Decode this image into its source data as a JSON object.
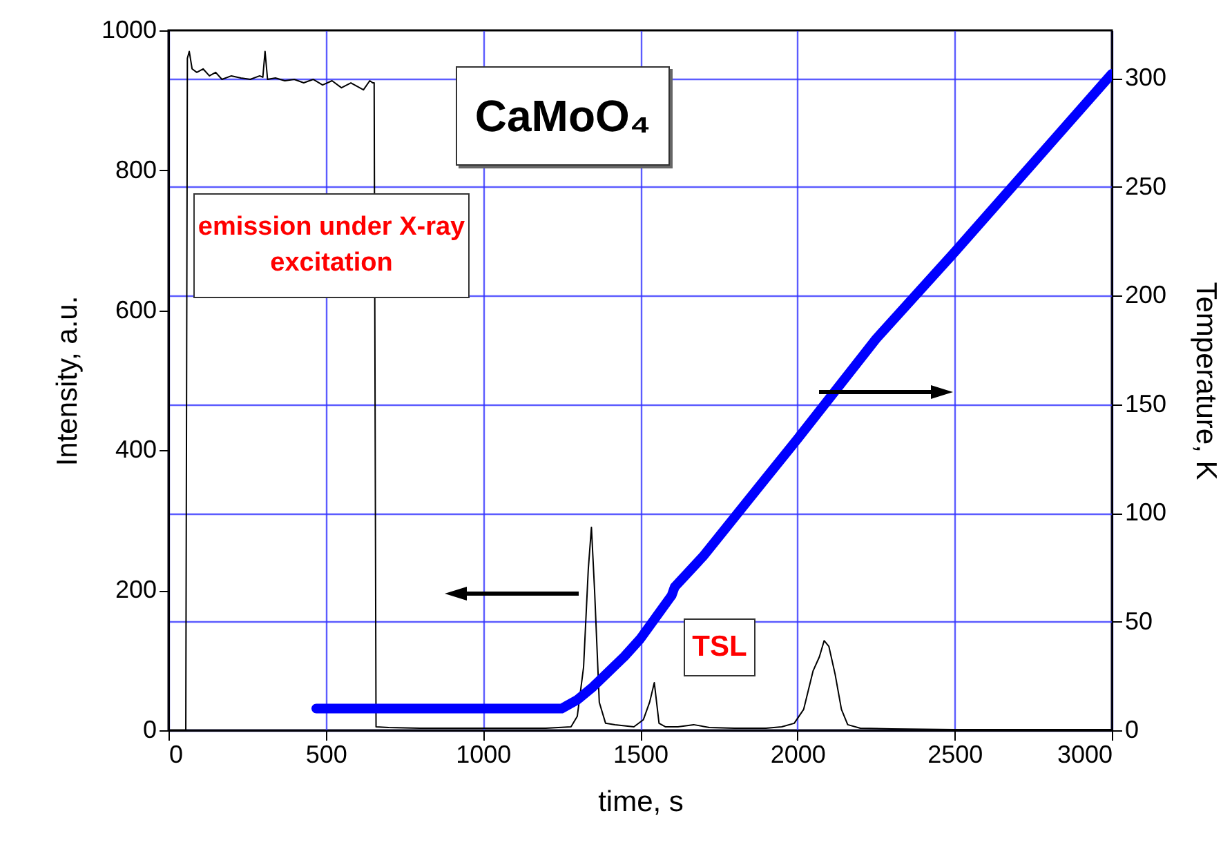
{
  "chart_data": {
    "type": "line",
    "title": "CaMoO₄",
    "xlabel": "time, s",
    "ylabel": "Intensity, a.u.",
    "y2label": "Temperature, K",
    "annotations": [
      "emission under X-ray excitation",
      "TSL"
    ],
    "xlim": [
      0,
      3000
    ],
    "xticks": [
      0,
      500,
      1000,
      1500,
      2000,
      2500,
      3000
    ],
    "ylim": [
      0,
      1000
    ],
    "yticks": [
      0,
      200,
      400,
      600,
      800,
      1000
    ],
    "y2lim": [
      0,
      322
    ],
    "y2ticks": [
      0,
      50,
      100,
      150,
      200,
      250,
      300
    ],
    "grid": true,
    "series": [
      {
        "color": "#000000",
        "x": [
          0,
          55,
          60,
          66,
          75,
          90,
          110,
          130,
          150,
          170,
          200,
          230,
          260,
          290,
          300,
          307,
          315,
          340,
          370,
          400,
          430,
          460,
          490,
          520,
          550,
          580,
          600,
          620,
          640,
          650,
          654,
          660,
          700,
          800,
          900,
          1000,
          1100,
          1200,
          1280,
          1300,
          1320,
          1335,
          1345,
          1355,
          1370,
          1390,
          1420,
          1480,
          1510,
          1530,
          1545,
          1560,
          1580,
          1620,
          1670,
          1720,
          1800,
          1900,
          1950,
          1990,
          2020,
          2050,
          2070,
          2085,
          2100,
          2120,
          2140,
          2160,
          2200,
          2300,
          2500,
          2700,
          3000
        ],
        "values": [
          0,
          0,
          960,
          970,
          945,
          940,
          945,
          935,
          940,
          930,
          935,
          932,
          930,
          935,
          933,
          970,
          930,
          932,
          928,
          930,
          925,
          930,
          922,
          928,
          918,
          925,
          920,
          915,
          928,
          925,
          925,
          5,
          4,
          3,
          3,
          3,
          3,
          3,
          5,
          20,
          90,
          230,
          290,
          200,
          40,
          10,
          8,
          5,
          15,
          40,
          68,
          10,
          5,
          5,
          8,
          4,
          3,
          3,
          5,
          10,
          30,
          85,
          105,
          128,
          120,
          80,
          30,
          8,
          3,
          2,
          1,
          1,
          1
        ]
      },
      {
        "color": "#0000ff",
        "axis": "y2",
        "x": [
          470,
          1250,
          1300,
          1350,
          1400,
          1450,
          1500,
          1550,
          1600,
          1610,
          1700,
          1800,
          1900,
          2000,
          2250,
          2500,
          2750,
          3000
        ],
        "values": [
          10,
          10,
          14,
          20,
          27,
          34,
          42,
          52,
          62,
          66,
          80,
          98,
          116,
          134,
          180,
          220,
          261,
          302
        ]
      }
    ]
  }
}
